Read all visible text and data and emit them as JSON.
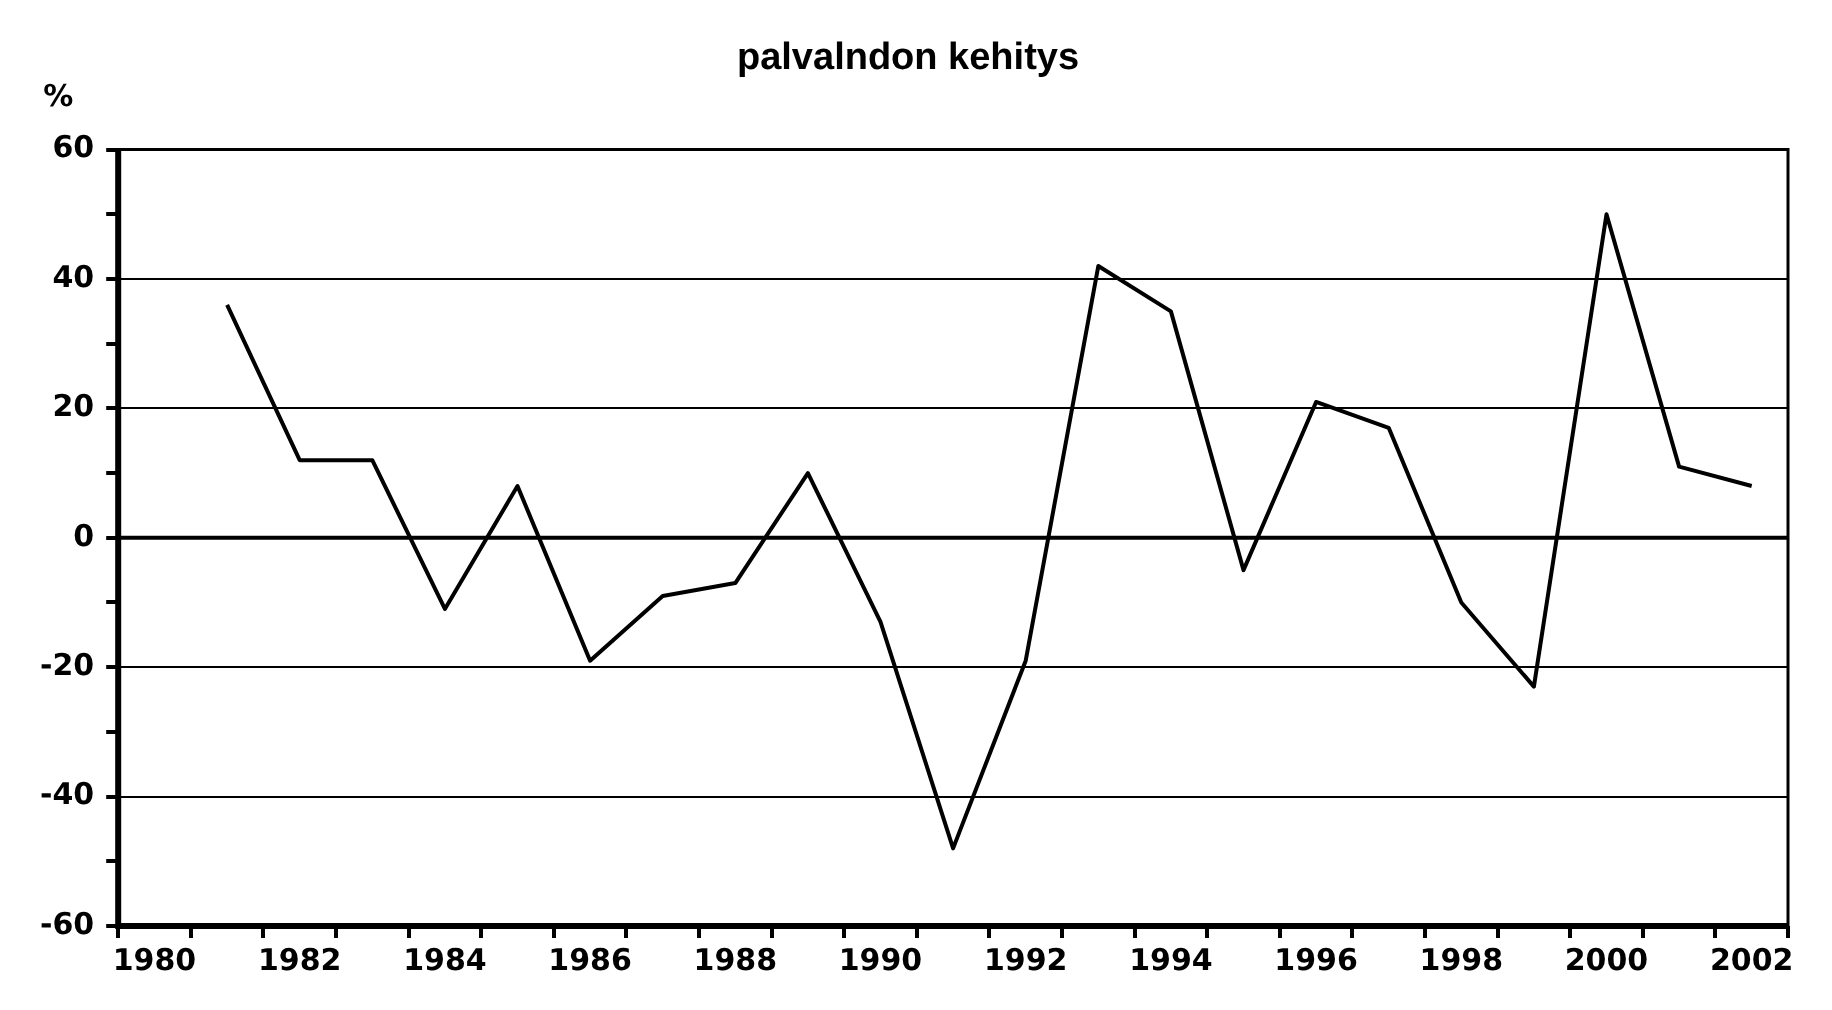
{
  "chart_data": {
    "type": "line",
    "title": "palvalndon kehitys",
    "ylabel": "%",
    "categories": [
      "1980",
      null,
      "1982",
      null,
      "1984",
      null,
      "1986",
      null,
      "1988",
      null,
      "1990",
      null,
      "1992",
      null,
      "1994",
      null,
      "1996",
      null,
      "1998",
      null,
      "2000",
      null,
      "2002"
    ],
    "series": [
      {
        "color": "#000000",
        "values": [
          null,
          36,
          12,
          12,
          -11,
          8,
          -19,
          -9,
          -7,
          10,
          -13,
          -48,
          -19,
          42,
          35,
          -5,
          21,
          17,
          -10,
          -23,
          50,
          11,
          8
        ]
      }
    ],
    "ylim": [
      -60,
      60
    ],
    "yticks": [
      -60,
      {
        "value": -50,
        "label": null
      },
      -40,
      {
        "value": -30,
        "label": null
      },
      -20,
      {
        "value": -10,
        "label": null
      },
      0,
      {
        "value": 10,
        "label": null
      },
      20,
      {
        "value": 30,
        "label": null
      },
      40,
      {
        "value": 50,
        "label": null
      },
      60
    ],
    "ref_lines": [
      {
        "axis": "y",
        "value": 0,
        "color": "#000000"
      }
    ],
    "grid": "y",
    "legend": false,
    "marker": "none",
    "line_style": "solid"
  }
}
